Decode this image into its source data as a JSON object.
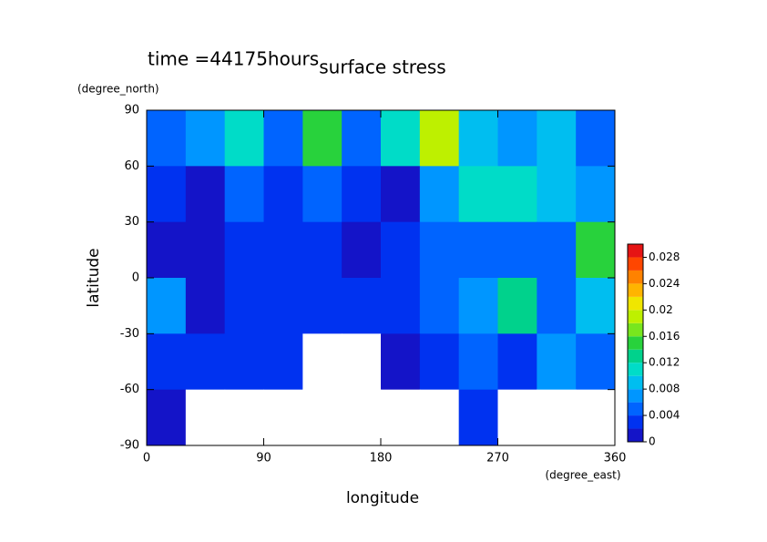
{
  "chart_data": {
    "type": "heatmap",
    "title": "surface stress",
    "subtitle": "time =44175hours",
    "x_label": "longitude",
    "y_label": "latitude",
    "x_unit": "(degree_east)",
    "y_unit": "(degree_north)",
    "x": [
      15,
      45,
      75,
      105,
      135,
      165,
      195,
      225,
      255,
      285,
      315,
      345
    ],
    "y": [
      75,
      45,
      15,
      -15,
      -45,
      -75
    ],
    "z": [
      [
        0.006,
        0.008,
        0.012,
        0.006,
        0.016,
        0.006,
        0.012,
        0.02,
        0.01,
        0.008,
        0.01,
        0.006
      ],
      [
        0.004,
        0.002,
        0.006,
        0.004,
        0.006,
        0.004,
        0.002,
        0.008,
        0.012,
        0.012,
        0.01,
        0.008
      ],
      [
        0.002,
        0.001,
        0.004,
        0.004,
        0.004,
        0.002,
        0.004,
        0.006,
        0.006,
        0.006,
        0.006,
        0.016
      ],
      [
        0.008,
        0.002,
        0.003,
        0.004,
        0.004,
        0.004,
        0.004,
        0.006,
        0.008,
        0.014,
        0.006,
        0.01
      ],
      [
        0.004,
        0.004,
        0.004,
        0.004,
        0,
        0,
        0.002,
        0.004,
        0.006,
        0.004,
        0.008,
        0.006
      ],
      [
        0.002,
        0,
        0,
        0,
        0,
        0,
        0,
        0,
        0.004,
        0,
        0,
        0
      ]
    ],
    "xlim": [
      0,
      360
    ],
    "xticks": [
      0,
      90,
      180,
      270,
      360
    ],
    "ylim": [
      -90,
      90
    ],
    "yticks": [
      -90,
      -60,
      -30,
      0,
      30,
      60,
      90
    ],
    "below_color": "#ffffff",
    "levels": [
      0,
      0.002,
      0.004,
      0.006,
      0.008,
      0.01,
      0.012,
      0.014,
      0.016,
      0.018,
      0.02,
      0.022,
      0.024,
      0.026,
      0.028,
      0.03
    ],
    "level_colors": [
      "#1414c8",
      "#0032f0",
      "#0064ff",
      "#0096ff",
      "#00bef0",
      "#00dcc8",
      "#00d28c",
      "#28d23c",
      "#78e61e",
      "#bef000",
      "#f0e600",
      "#ffb400",
      "#ff8200",
      "#ff4600",
      "#e61414"
    ],
    "colorbar_ticks": [
      0,
      0.004,
      0.008,
      0.012,
      0.016,
      0.02,
      0.024,
      0.028
    ]
  }
}
